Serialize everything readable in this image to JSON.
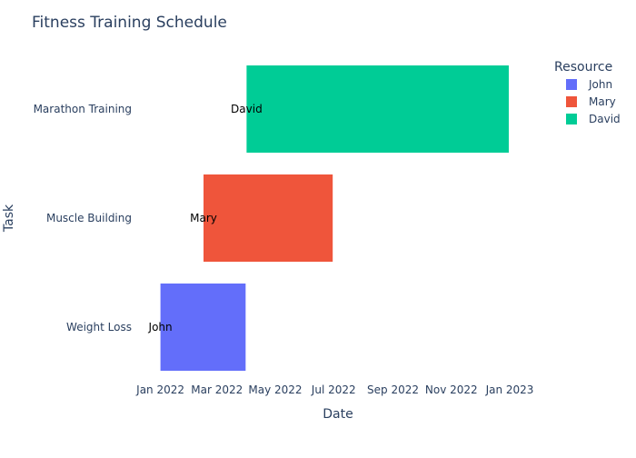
{
  "chart_data": {
    "type": "bar",
    "orientation": "horizontal-gantt",
    "title": "Fitness Training Schedule",
    "xlabel": "Date",
    "ylabel": "Task",
    "categories": [
      "Weight Loss",
      "Muscle Building",
      "Marathon Training"
    ],
    "x_ticks": [
      "2022-01-01",
      "2022-03-01",
      "2022-05-01",
      "2022-07-01",
      "2022-09-01",
      "2022-11-01",
      "2023-01-01"
    ],
    "x_tick_labels": [
      "Jan 2022",
      "Mar 2022",
      "May 2022",
      "Jul 2022",
      "Sep 2022",
      "Nov 2022",
      "Jan 2023"
    ],
    "xlim": [
      "2021-12-02",
      "2023-02-07"
    ],
    "grid": false,
    "legend_title": "Resource",
    "legend_position": "top-right",
    "series": [
      {
        "name": "John",
        "color": "#636efa",
        "task": "Weight Loss",
        "start": "2022-01-01",
        "end": "2022-03-31",
        "label": "John"
      },
      {
        "name": "Mary",
        "color": "#ef553b",
        "task": "Muscle Building",
        "start": "2022-02-15",
        "end": "2022-06-30",
        "label": "Mary"
      },
      {
        "name": "David",
        "color": "#00cc96",
        "task": "Marathon Training",
        "start": "2022-04-01",
        "end": "2022-12-31",
        "label": "David"
      }
    ]
  }
}
